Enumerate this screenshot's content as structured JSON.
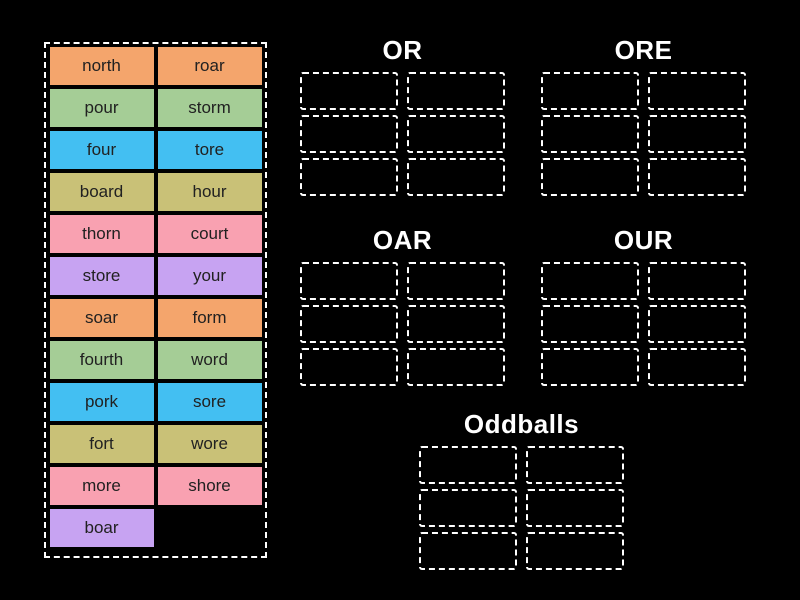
{
  "app": {
    "background": "#000000"
  },
  "palette": {
    "orange": "#F4A56C",
    "green": "#A5CD96",
    "blue": "#43BFF2",
    "olive": "#C9C177",
    "pink": "#F9A1B1",
    "purple": "#C7A3F2",
    "tile_text": "#212121",
    "title_text": "#FFFFFF",
    "dash_border": "#FFFFFF"
  },
  "word_bank": {
    "tiles": [
      {
        "label": "north",
        "color": "orange"
      },
      {
        "label": "roar",
        "color": "orange"
      },
      {
        "label": "pour",
        "color": "green"
      },
      {
        "label": "storm",
        "color": "green"
      },
      {
        "label": "four",
        "color": "blue"
      },
      {
        "label": "tore",
        "color": "blue"
      },
      {
        "label": "board",
        "color": "olive"
      },
      {
        "label": "hour",
        "color": "olive"
      },
      {
        "label": "thorn",
        "color": "pink"
      },
      {
        "label": "court",
        "color": "pink"
      },
      {
        "label": "store",
        "color": "purple"
      },
      {
        "label": "your",
        "color": "purple"
      },
      {
        "label": "soar",
        "color": "orange"
      },
      {
        "label": "form",
        "color": "orange"
      },
      {
        "label": "fourth",
        "color": "green"
      },
      {
        "label": "word",
        "color": "green"
      },
      {
        "label": "pork",
        "color": "blue"
      },
      {
        "label": "sore",
        "color": "blue"
      },
      {
        "label": "fort",
        "color": "olive"
      },
      {
        "label": "wore",
        "color": "olive"
      },
      {
        "label": "more",
        "color": "pink"
      },
      {
        "label": "shore",
        "color": "pink"
      },
      {
        "label": "boar",
        "color": "purple"
      }
    ]
  },
  "groups": [
    {
      "title": "OR",
      "slot_count": 6
    },
    {
      "title": "ORE",
      "slot_count": 6
    },
    {
      "title": "OAR",
      "slot_count": 6
    },
    {
      "title": "OUR",
      "slot_count": 6
    },
    {
      "title": "Oddballs",
      "slot_count": 6
    }
  ]
}
